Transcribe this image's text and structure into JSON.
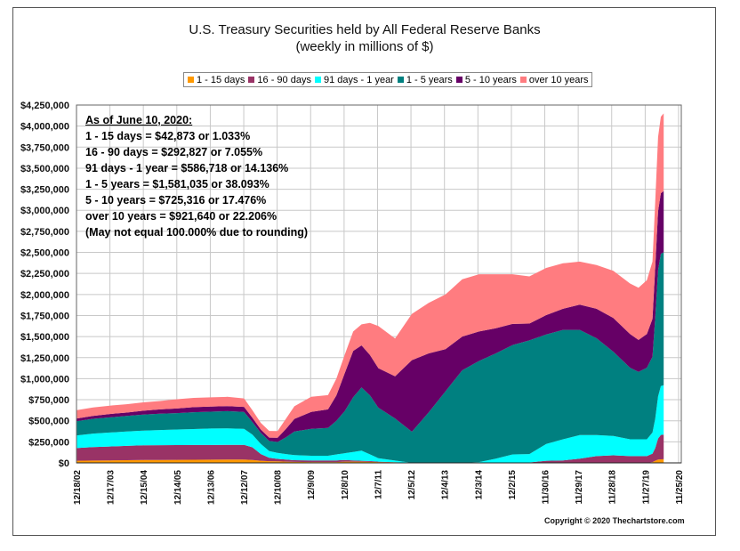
{
  "chart_data": {
    "type": "area",
    "stacked": true,
    "title": "U.S. Treasury Securities held by All Federal Reserve Banks",
    "subtitle": "(weekly in millions of $)",
    "ylim": [
      0,
      4250000
    ],
    "y_ticks": [
      "$0",
      "$250,000",
      "$500,000",
      "$750,000",
      "$1,000,000",
      "$1,250,000",
      "$1,500,000",
      "$1,750,000",
      "$2,000,000",
      "$2,250,000",
      "$2,500,000",
      "$2,750,000",
      "$3,000,000",
      "$3,250,000",
      "$3,500,000",
      "$3,750,000",
      "$4,000,000",
      "$4,250,000"
    ],
    "x_ticks": [
      "12/18/02",
      "12/17/03",
      "12/15/04",
      "12/14/05",
      "12/13/06",
      "12/12/07",
      "12/10/08",
      "12/9/09",
      "12/8/10",
      "12/7/11",
      "12/5/12",
      "12/4/13",
      "12/3/14",
      "12/2/15",
      "11/30/16",
      "11/29/17",
      "11/28/18",
      "11/27/19",
      "11/25/20"
    ],
    "x": [
      "2002-12",
      "2003-06",
      "2003-12",
      "2004-06",
      "2004-12",
      "2005-06",
      "2005-12",
      "2006-06",
      "2006-12",
      "2007-06",
      "2007-12",
      "2008-03",
      "2008-06",
      "2008-09",
      "2008-12",
      "2009-03",
      "2009-06",
      "2009-12",
      "2010-06",
      "2010-09",
      "2010-12",
      "2011-03",
      "2011-06",
      "2011-09",
      "2011-12",
      "2012-06",
      "2012-12",
      "2013-06",
      "2013-12",
      "2014-06",
      "2014-12",
      "2015-06",
      "2015-12",
      "2016-06",
      "2016-12",
      "2017-06",
      "2017-12",
      "2018-06",
      "2018-12",
      "2019-06",
      "2019-09",
      "2019-12",
      "2020-02",
      "2020-03",
      "2020-04",
      "2020-05",
      "2020-06"
    ],
    "series": [
      {
        "name": "1 - 15 days",
        "color": "#ff9900",
        "values": [
          25000,
          28000,
          30000,
          32000,
          34000,
          35000,
          36000,
          37000,
          38000,
          39000,
          40000,
          35000,
          25000,
          20000,
          18000,
          15000,
          12000,
          10000,
          10000,
          10000,
          15000,
          15000,
          15000,
          12000,
          10000,
          8000,
          0,
          0,
          0,
          0,
          0,
          0,
          0,
          0,
          0,
          0,
          0,
          0,
          0,
          0,
          0,
          0,
          10000,
          25000,
          40000,
          42000,
          42873
        ]
      },
      {
        "name": "16 - 90 days",
        "color": "#993366",
        "values": [
          150000,
          160000,
          165000,
          170000,
          175000,
          175000,
          175000,
          175000,
          175000,
          175000,
          175000,
          150000,
          80000,
          40000,
          30000,
          25000,
          20000,
          20000,
          20000,
          20000,
          20000,
          15000,
          10000,
          10000,
          5000,
          0,
          0,
          0,
          0,
          0,
          0,
          0,
          0,
          5000,
          25000,
          30000,
          50000,
          80000,
          90000,
          80000,
          80000,
          80000,
          100000,
          150000,
          250000,
          290000,
          292827
        ]
      },
      {
        "name": "91 days - 1 year",
        "color": "#00ffff",
        "values": [
          150000,
          160000,
          165000,
          170000,
          175000,
          180000,
          185000,
          190000,
          195000,
          195000,
          190000,
          150000,
          120000,
          80000,
          70000,
          65000,
          60000,
          55000,
          55000,
          70000,
          80000,
          100000,
          120000,
          80000,
          40000,
          20000,
          0,
          0,
          0,
          0,
          10000,
          50000,
          100000,
          100000,
          200000,
          250000,
          280000,
          250000,
          230000,
          200000,
          200000,
          200000,
          250000,
          350000,
          500000,
          580000,
          586718
        ]
      },
      {
        "name": "1 - 5 years",
        "color": "#008080",
        "values": [
          170000,
          175000,
          180000,
          185000,
          190000,
          195000,
          195000,
          200000,
          200000,
          205000,
          200000,
          150000,
          130000,
          120000,
          130000,
          200000,
          280000,
          320000,
          330000,
          400000,
          500000,
          650000,
          750000,
          700000,
          600000,
          500000,
          370000,
          600000,
          850000,
          1100000,
          1200000,
          1250000,
          1300000,
          1350000,
          1300000,
          1300000,
          1250000,
          1150000,
          1000000,
          850000,
          800000,
          850000,
          900000,
          1200000,
          1500000,
          1570000,
          1581035
        ]
      },
      {
        "name": "5 - 10 years",
        "color": "#660066",
        "values": [
          30000,
          35000,
          40000,
          40000,
          45000,
          50000,
          55000,
          60000,
          60000,
          60000,
          60000,
          50000,
          40000,
          40000,
          50000,
          100000,
          150000,
          200000,
          220000,
          300000,
          450000,
          550000,
          500000,
          480000,
          470000,
          500000,
          850000,
          700000,
          500000,
          400000,
          350000,
          300000,
          250000,
          200000,
          230000,
          250000,
          300000,
          350000,
          400000,
          400000,
          380000,
          400000,
          450000,
          600000,
          700000,
          720000,
          725316
        ]
      },
      {
        "name": "over 10 years",
        "color": "#ff7c80",
        "values": [
          100000,
          100000,
          100000,
          100000,
          100000,
          100000,
          110000,
          110000,
          110000,
          110000,
          100000,
          90000,
          80000,
          80000,
          80000,
          120000,
          150000,
          180000,
          170000,
          200000,
          220000,
          230000,
          250000,
          380000,
          500000,
          450000,
          550000,
          600000,
          650000,
          680000,
          680000,
          640000,
          590000,
          560000,
          560000,
          540000,
          510000,
          520000,
          560000,
          600000,
          620000,
          640000,
          680000,
          780000,
          880000,
          910000,
          921640
        ]
      }
    ]
  },
  "legend_items": [
    {
      "label": "1 - 15 days",
      "color": "#ff9900"
    },
    {
      "label": "16 - 90 days",
      "color": "#993366"
    },
    {
      "label": "91 days - 1 year",
      "color": "#00ffff"
    },
    {
      "label": "1 - 5 years",
      "color": "#008080"
    },
    {
      "label": "5 - 10 years",
      "color": "#660066"
    },
    {
      "label": "over 10 years",
      "color": "#ff7c80"
    }
  ],
  "annotation": {
    "heading": "As of June 10, 2020:",
    "lines": [
      "1 - 15 days = $42,873 or 1.033%",
      "16 - 90 days = $292,827 or 7.055%",
      "91 days - 1 year = $586,718 or 14.136%",
      "1 - 5 years = $1,581,035 or 38.093%",
      "5 - 10 years = $725,316 or 17.476%",
      "over 10 years = $921,640 or 22.206%",
      "(May not equal 100.000% due to rounding)"
    ]
  },
  "copyright": "Copyright © 2020 Thechartstore.com"
}
